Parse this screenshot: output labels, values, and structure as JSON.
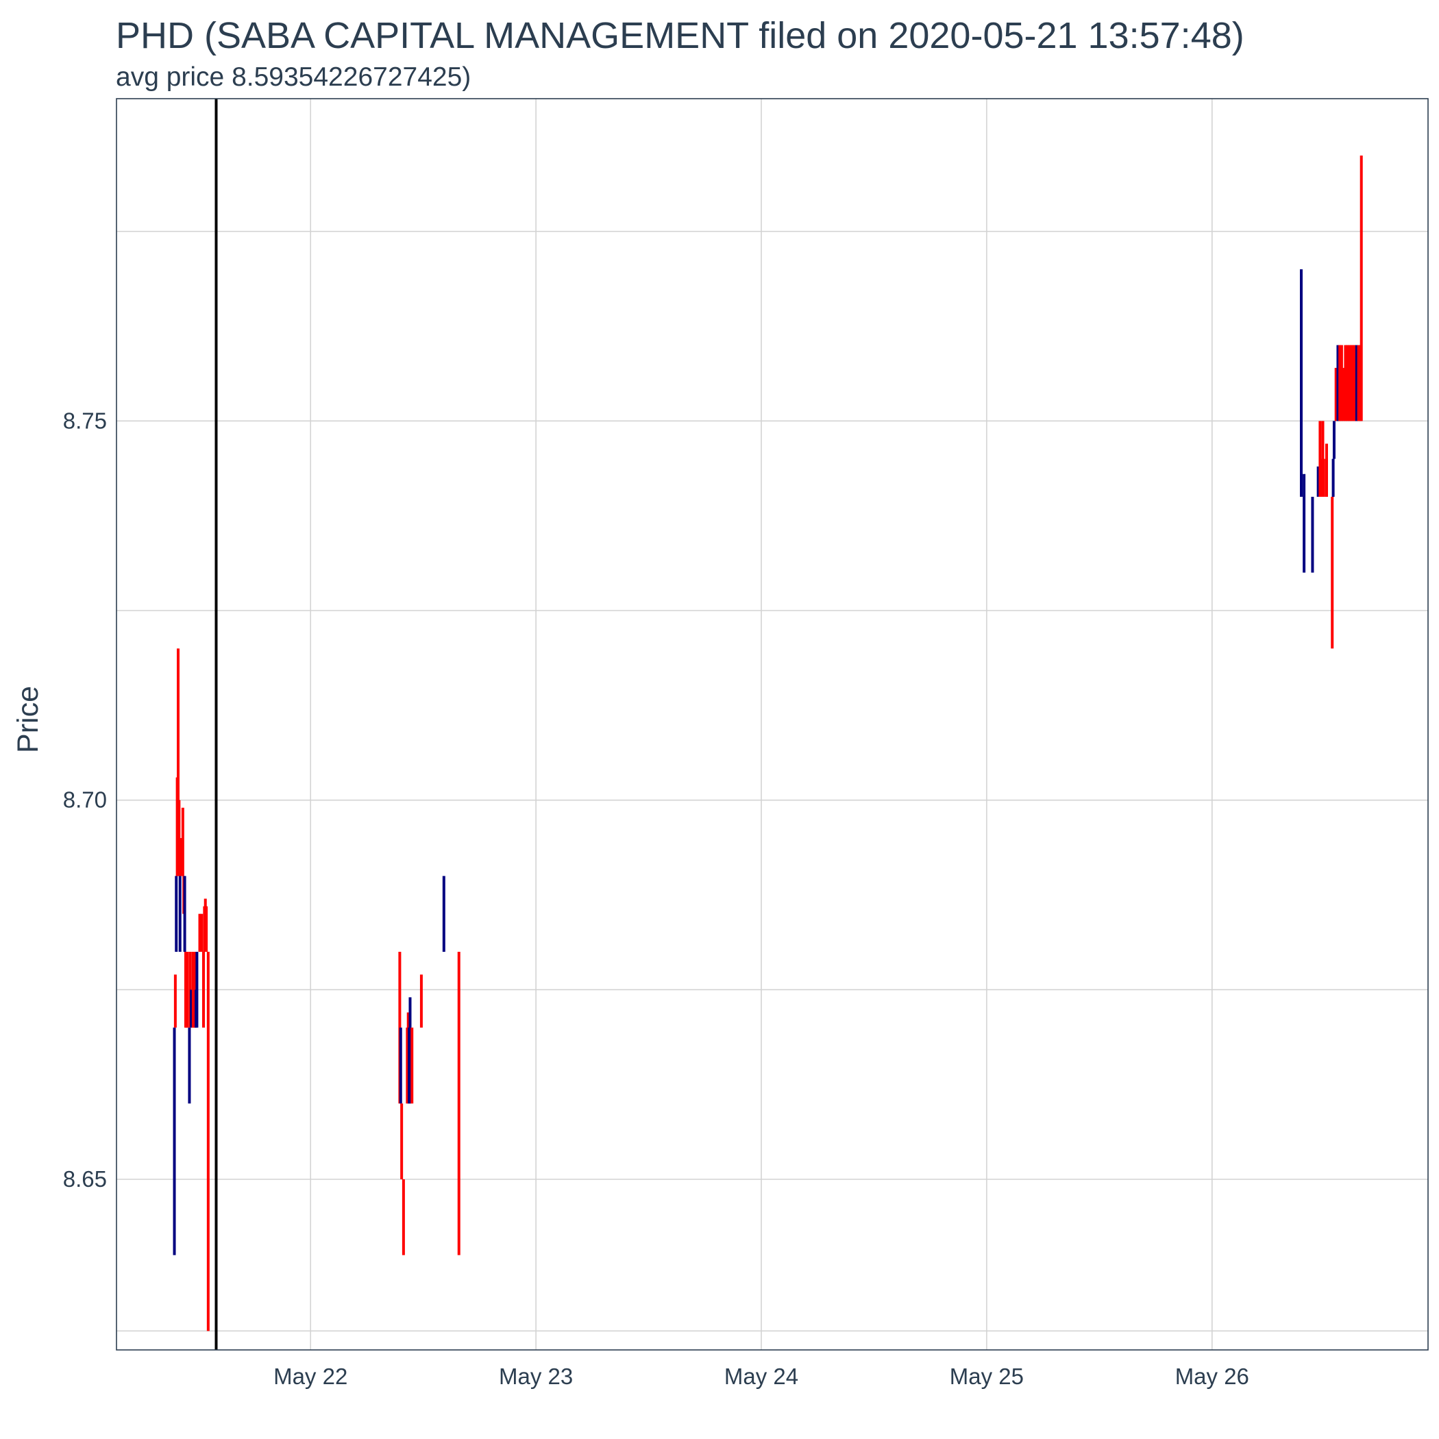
{
  "chart_data": {
    "type": "bar",
    "title": "PHD (SABA CAPITAL MANAGEMENT filed on 2020-05-21 13:57:48)",
    "subtitle": "avg price 8.59354226727425)",
    "xlabel": "",
    "ylabel": "Price",
    "xlim": [
      "2020-05-21 03:20",
      "2020-05-26 23:00"
    ],
    "ylim": [
      8.6275,
      8.7925
    ],
    "x_ticks": [
      "2020-05-22",
      "2020-05-23",
      "2020-05-24",
      "2020-05-25",
      "2020-05-26"
    ],
    "x_tick_labels": [
      "May 22",
      "May 23",
      "May 24",
      "May 25",
      "May 26"
    ],
    "y_ticks": [
      8.65,
      8.7,
      8.75
    ],
    "y_tick_labels": [
      "8.65",
      "8.70",
      "8.75"
    ],
    "y_minor_ticks": [
      8.63,
      8.675,
      8.725,
      8.775
    ],
    "grid": true,
    "filing_line_x": "2020-05-21 13:57",
    "colors": {
      "up": "#000080",
      "down": "#ff0000",
      "filing_line": "#000000"
    },
    "candles": [
      {
        "t": "2020-05-21 09:30",
        "low": 8.64,
        "high": 8.67,
        "dir": "up"
      },
      {
        "t": "2020-05-21 09:36",
        "low": 8.67,
        "high": 8.677,
        "dir": "down"
      },
      {
        "t": "2020-05-21 09:42",
        "low": 8.68,
        "high": 8.69,
        "dir": "up"
      },
      {
        "t": "2020-05-21 09:48",
        "low": 8.69,
        "high": 8.703,
        "dir": "down"
      },
      {
        "t": "2020-05-21 09:54",
        "low": 8.69,
        "high": 8.72,
        "dir": "down"
      },
      {
        "t": "2020-05-21 10:00",
        "low": 8.69,
        "high": 8.7,
        "dir": "down"
      },
      {
        "t": "2020-05-21 10:06",
        "low": 8.68,
        "high": 8.69,
        "dir": "up"
      },
      {
        "t": "2020-05-21 10:12",
        "low": 8.69,
        "high": 8.695,
        "dir": "down"
      },
      {
        "t": "2020-05-21 10:18",
        "low": 8.69,
        "high": 8.695,
        "dir": "down"
      },
      {
        "t": "2020-05-21 10:24",
        "low": 8.69,
        "high": 8.699,
        "dir": "down"
      },
      {
        "t": "2020-05-21 10:30",
        "low": 8.685,
        "high": 8.69,
        "dir": "down"
      },
      {
        "t": "2020-05-21 10:36",
        "low": 8.68,
        "high": 8.69,
        "dir": "up"
      },
      {
        "t": "2020-05-21 10:42",
        "low": 8.67,
        "high": 8.68,
        "dir": "down"
      },
      {
        "t": "2020-05-21 10:48",
        "low": 8.67,
        "high": 8.68,
        "dir": "down"
      },
      {
        "t": "2020-05-21 10:54",
        "low": 8.67,
        "high": 8.68,
        "dir": "down"
      },
      {
        "t": "2020-05-21 11:06",
        "low": 8.66,
        "high": 8.67,
        "dir": "up"
      },
      {
        "t": "2020-05-21 11:12",
        "low": 8.67,
        "high": 8.68,
        "dir": "down"
      },
      {
        "t": "2020-05-21 11:18",
        "low": 8.67,
        "high": 8.675,
        "dir": "up"
      },
      {
        "t": "2020-05-21 11:30",
        "low": 8.67,
        "high": 8.68,
        "dir": "down"
      },
      {
        "t": "2020-05-21 11:36",
        "low": 8.67,
        "high": 8.68,
        "dir": "down"
      },
      {
        "t": "2020-05-21 11:42",
        "low": 8.67,
        "high": 8.68,
        "dir": "down"
      },
      {
        "t": "2020-05-21 11:48",
        "low": 8.67,
        "high": 8.675,
        "dir": "up"
      },
      {
        "t": "2020-05-21 11:54",
        "low": 8.67,
        "high": 8.68,
        "dir": "up"
      },
      {
        "t": "2020-05-21 12:12",
        "low": 8.68,
        "high": 8.685,
        "dir": "down"
      },
      {
        "t": "2020-05-21 12:24",
        "low": 8.68,
        "high": 8.685,
        "dir": "down"
      },
      {
        "t": "2020-05-21 12:36",
        "low": 8.67,
        "high": 8.68,
        "dir": "down"
      },
      {
        "t": "2020-05-21 12:42",
        "low": 8.68,
        "high": 8.686,
        "dir": "down"
      },
      {
        "t": "2020-05-21 12:48",
        "low": 8.68,
        "high": 8.687,
        "dir": "down"
      },
      {
        "t": "2020-05-21 12:54",
        "low": 8.68,
        "high": 8.686,
        "dir": "down"
      },
      {
        "t": "2020-05-21 13:06",
        "low": 8.63,
        "high": 8.68,
        "dir": "down"
      },
      {
        "t": "2020-05-22 09:30",
        "low": 8.66,
        "high": 8.68,
        "dir": "down"
      },
      {
        "t": "2020-05-22 09:36",
        "low": 8.66,
        "high": 8.67,
        "dir": "up"
      },
      {
        "t": "2020-05-22 09:42",
        "low": 8.65,
        "high": 8.66,
        "dir": "down"
      },
      {
        "t": "2020-05-22 09:54",
        "low": 8.64,
        "high": 8.65,
        "dir": "down"
      },
      {
        "t": "2020-05-22 10:18",
        "low": 8.66,
        "high": 8.67,
        "dir": "down"
      },
      {
        "t": "2020-05-22 10:24",
        "low": 8.66,
        "high": 8.672,
        "dir": "down"
      },
      {
        "t": "2020-05-22 10:30",
        "low": 8.66,
        "high": 8.67,
        "dir": "up"
      },
      {
        "t": "2020-05-22 10:36",
        "low": 8.66,
        "high": 8.674,
        "dir": "up"
      },
      {
        "t": "2020-05-22 10:48",
        "low": 8.66,
        "high": 8.67,
        "dir": "down"
      },
      {
        "t": "2020-05-22 11:48",
        "low": 8.67,
        "high": 8.677,
        "dir": "down"
      },
      {
        "t": "2020-05-22 14:12",
        "low": 8.68,
        "high": 8.69,
        "dir": "up"
      },
      {
        "t": "2020-05-22 15:48",
        "low": 8.64,
        "high": 8.68,
        "dir": "down"
      },
      {
        "t": "2020-05-26 09:30",
        "low": 8.74,
        "high": 8.77,
        "dir": "up"
      },
      {
        "t": "2020-05-26 09:48",
        "low": 8.73,
        "high": 8.743,
        "dir": "up"
      },
      {
        "t": "2020-05-26 10:42",
        "low": 8.73,
        "high": 8.74,
        "dir": "up"
      },
      {
        "t": "2020-05-26 11:18",
        "low": 8.74,
        "high": 8.744,
        "dir": "up"
      },
      {
        "t": "2020-05-26 11:30",
        "low": 8.74,
        "high": 8.75,
        "dir": "down"
      },
      {
        "t": "2020-05-26 11:36",
        "low": 8.74,
        "high": 8.745,
        "dir": "down"
      },
      {
        "t": "2020-05-26 11:48",
        "low": 8.74,
        "high": 8.75,
        "dir": "down"
      },
      {
        "t": "2020-05-26 11:54",
        "low": 8.74,
        "high": 8.745,
        "dir": "down"
      },
      {
        "t": "2020-05-26 12:12",
        "low": 8.74,
        "high": 8.747,
        "dir": "down"
      },
      {
        "t": "2020-05-26 12:48",
        "low": 8.72,
        "high": 8.74,
        "dir": "down"
      },
      {
        "t": "2020-05-26 12:54",
        "low": 8.74,
        "high": 8.745,
        "dir": "up"
      },
      {
        "t": "2020-05-26 13:00",
        "low": 8.745,
        "high": 8.75,
        "dir": "up"
      },
      {
        "t": "2020-05-26 13:12",
        "low": 8.75,
        "high": 8.757,
        "dir": "down"
      },
      {
        "t": "2020-05-26 13:24",
        "low": 8.75,
        "high": 8.76,
        "dir": "up"
      },
      {
        "t": "2020-05-26 13:36",
        "low": 8.75,
        "high": 8.76,
        "dir": "down"
      },
      {
        "t": "2020-05-26 13:48",
        "low": 8.75,
        "high": 8.76,
        "dir": "down"
      },
      {
        "t": "2020-05-26 14:00",
        "low": 8.75,
        "high": 8.757,
        "dir": "down"
      },
      {
        "t": "2020-05-26 14:12",
        "low": 8.75,
        "high": 8.76,
        "dir": "down"
      },
      {
        "t": "2020-05-26 14:24",
        "low": 8.75,
        "high": 8.76,
        "dir": "down"
      },
      {
        "t": "2020-05-26 14:36",
        "low": 8.75,
        "high": 8.76,
        "dir": "down"
      },
      {
        "t": "2020-05-26 14:48",
        "low": 8.75,
        "high": 8.76,
        "dir": "down"
      },
      {
        "t": "2020-05-26 15:00",
        "low": 8.75,
        "high": 8.76,
        "dir": "down"
      },
      {
        "t": "2020-05-26 15:12",
        "low": 8.75,
        "high": 8.76,
        "dir": "down"
      },
      {
        "t": "2020-05-26 15:24",
        "low": 8.75,
        "high": 8.76,
        "dir": "up"
      },
      {
        "t": "2020-05-26 15:36",
        "low": 8.75,
        "high": 8.76,
        "dir": "down"
      },
      {
        "t": "2020-05-26 15:48",
        "low": 8.75,
        "high": 8.76,
        "dir": "down"
      },
      {
        "t": "2020-05-26 15:54",
        "low": 8.75,
        "high": 8.785,
        "dir": "down"
      }
    ]
  }
}
